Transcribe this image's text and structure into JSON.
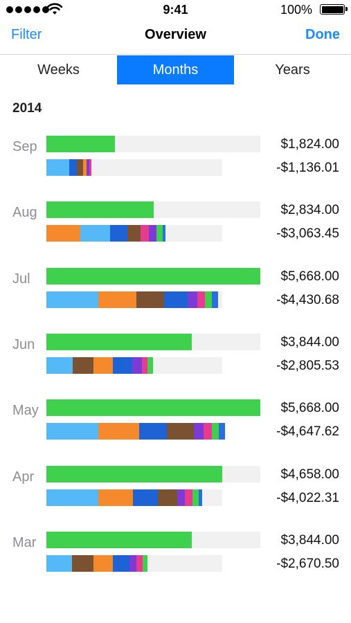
{
  "status_bar": {
    "time": "9:41",
    "battery_percent": "100%",
    "signal_bars": 5,
    "battery_level": 1.0
  },
  "nav": {
    "left_label": "Filter",
    "title": "Overview",
    "right_label": "Done"
  },
  "tabs": [
    {
      "label": "Weeks",
      "active": false
    },
    {
      "label": "Months",
      "active": true
    },
    {
      "label": "Years",
      "active": false
    }
  ],
  "colors": {
    "accent": "#0a7aff",
    "link": "#1a8cff",
    "income": "#3fd14d",
    "track": "#f1f1f1"
  },
  "year": "2014",
  "max_value": 5668.0,
  "months": [
    {
      "label": "Sep",
      "income": "$1,824.00",
      "expense": "-$1,136.01",
      "income_value": 1824.0,
      "expense_value": 1136.01,
      "segments": [
        {
          "c": "#54b9f6",
          "v": 0.13
        },
        {
          "c": "#1e63d6",
          "v": 0.045
        },
        {
          "c": "#7a5232",
          "v": 0.035
        },
        {
          "c": "#f58a2c",
          "v": 0.02
        },
        {
          "c": "#7c3bd6",
          "v": 0.015
        },
        {
          "c": "#e83a8e",
          "v": 0.008
        }
      ]
    },
    {
      "label": "Aug",
      "income": "$2,834.00",
      "expense": "-$3,063.45",
      "income_value": 2834.0,
      "expense_value": 3063.45,
      "segments": [
        {
          "c": "#f58a2c",
          "v": 0.193
        },
        {
          "c": "#54b9f6",
          "v": 0.169
        },
        {
          "c": "#1e63d6",
          "v": 0.098
        },
        {
          "c": "#7a5232",
          "v": 0.075
        },
        {
          "c": "#e83a8e",
          "v": 0.047
        },
        {
          "c": "#7c3bd6",
          "v": 0.043
        },
        {
          "c": "#3fd14d",
          "v": 0.035
        },
        {
          "c": "#2a6fe0",
          "v": 0.012
        }
      ]
    },
    {
      "label": "Jul",
      "income": "$5,668.00",
      "expense": "-$4,430.68",
      "income_value": 5668.0,
      "expense_value": 4430.68,
      "segments": [
        {
          "c": "#54b9f6",
          "v": 0.295
        },
        {
          "c": "#f58a2c",
          "v": 0.217
        },
        {
          "c": "#7a5232",
          "v": 0.157
        },
        {
          "c": "#1e63d6",
          "v": 0.134
        },
        {
          "c": "#7c3bd6",
          "v": 0.055
        },
        {
          "c": "#e83a8e",
          "v": 0.043
        },
        {
          "c": "#3fd14d",
          "v": 0.04
        },
        {
          "c": "#2a6fe0",
          "v": 0.035
        }
      ]
    },
    {
      "label": "Jun",
      "income": "$3,844.00",
      "expense": "-$2,805.53",
      "income_value": 3844.0,
      "expense_value": 2805.53,
      "segments": [
        {
          "c": "#54b9f6",
          "v": 0.15
        },
        {
          "c": "#7a5232",
          "v": 0.118
        },
        {
          "c": "#f58a2c",
          "v": 0.11
        },
        {
          "c": "#1e63d6",
          "v": 0.11
        },
        {
          "c": "#7c3bd6",
          "v": 0.055
        },
        {
          "c": "#e83a8e",
          "v": 0.03
        },
        {
          "c": "#3fd14d",
          "v": 0.03
        }
      ]
    },
    {
      "label": "May",
      "income": "$5,668.00",
      "expense": "-$4,647.62",
      "income_value": 5668.0,
      "expense_value": 4647.62,
      "segments": [
        {
          "c": "#54b9f6",
          "v": 0.295
        },
        {
          "c": "#f58a2c",
          "v": 0.232
        },
        {
          "c": "#1e63d6",
          "v": 0.157
        },
        {
          "c": "#7a5232",
          "v": 0.154
        },
        {
          "c": "#7c3bd6",
          "v": 0.055
        },
        {
          "c": "#e83a8e",
          "v": 0.047
        },
        {
          "c": "#3fd14d",
          "v": 0.04
        },
        {
          "c": "#2a6fe0",
          "v": 0.035
        }
      ]
    },
    {
      "label": "Apr",
      "income": "$4,658.00",
      "expense": "-$4,022.31",
      "income_value": 4658.0,
      "expense_value": 4022.31,
      "segments": [
        {
          "c": "#54b9f6",
          "v": 0.295
        },
        {
          "c": "#f58a2c",
          "v": 0.197
        },
        {
          "c": "#1e63d6",
          "v": 0.142
        },
        {
          "c": "#7a5232",
          "v": 0.11
        },
        {
          "c": "#7c3bd6",
          "v": 0.043
        },
        {
          "c": "#e83a8e",
          "v": 0.043
        },
        {
          "c": "#3fd14d",
          "v": 0.035
        },
        {
          "c": "#2a6fe0",
          "v": 0.016
        }
      ]
    },
    {
      "label": "Mar",
      "income": "$3,844.00",
      "expense": "-$2,670.50",
      "income_value": 3844.0,
      "expense_value": 2670.5,
      "segments": [
        {
          "c": "#54b9f6",
          "v": 0.146
        },
        {
          "c": "#7a5232",
          "v": 0.122
        },
        {
          "c": "#f58a2c",
          "v": 0.11
        },
        {
          "c": "#1e63d6",
          "v": 0.094
        },
        {
          "c": "#7c3bd6",
          "v": 0.039
        },
        {
          "c": "#e83a8e",
          "v": 0.035
        },
        {
          "c": "#3fd14d",
          "v": 0.024
        }
      ]
    }
  ]
}
